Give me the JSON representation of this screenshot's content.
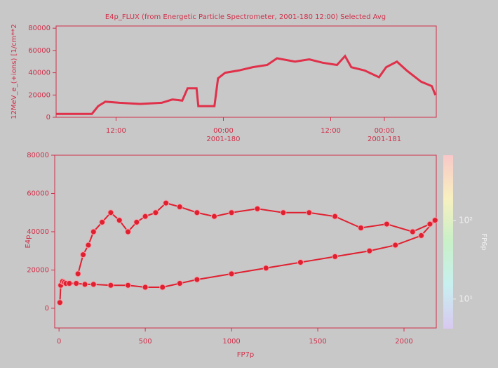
{
  "chart_data": [
    {
      "type": "line",
      "title": "E4p_FLUX (from Energetic Particle Spectrometer, 2001-180 12:00) Selected Avg",
      "ylabel": "12MeV_e_(+ions) [1/cm**2",
      "x": [
        5.3,
        6.9,
        9.3,
        10.0,
        10.8,
        12.4,
        14.7,
        17.1,
        18.3,
        19.4,
        20.0,
        21.0,
        21.2,
        23.0,
        23.4,
        24.2,
        25.7,
        27.3,
        28.9,
        30.0,
        32.0,
        33.6,
        35.1,
        36.7,
        37.6,
        38.3,
        39.8,
        41.4,
        42.2,
        43.4,
        44.5,
        46.1,
        47.3,
        47.7
      ],
      "series": [
        {
          "color": "#e0304a",
          "values": [
            3000,
            3000,
            3000,
            10000,
            14000,
            13000,
            12000,
            13000,
            16000,
            15000,
            26000,
            26000,
            10000,
            10000,
            35000,
            40000,
            42000,
            45000,
            47000,
            53000,
            50000,
            52000,
            49000,
            47000,
            55000,
            45000,
            42000,
            36000,
            45000,
            50000,
            42000,
            32000,
            28000,
            20000
          ]
        }
      ],
      "xlim": [
        5.3,
        47.8
      ],
      "xticks": [
        {
          "value": 12,
          "label": "12:00"
        },
        {
          "value": 24,
          "label": "00:00"
        },
        {
          "value": 36,
          "label": "12:00"
        },
        {
          "value": 42,
          "label": "00:00"
        }
      ],
      "xtick_dates": [
        {
          "value": 24,
          "label": "2001-180"
        },
        {
          "value": 42,
          "label": "2001-181"
        }
      ],
      "ylim": [
        0,
        82000
      ],
      "yticks": [
        0,
        20000,
        40000,
        60000,
        80000
      ]
    },
    {
      "type": "scatter",
      "xlabel": "FP7p",
      "ylabel": "E4p",
      "x": [
        5,
        10,
        20,
        30,
        40,
        60,
        100,
        150,
        200,
        300,
        400,
        500,
        600,
        700,
        800,
        1000,
        1200,
        1400,
        1600,
        1800,
        1950,
        2100,
        2180,
        2150,
        2050,
        1900,
        1750,
        1600,
        1450,
        1300,
        1150,
        1000,
        900,
        800,
        700,
        620,
        560,
        500,
        450,
        400,
        350,
        300,
        250,
        200,
        170,
        140,
        110
      ],
      "series": [
        {
          "color": "#e02030",
          "values": [
            3000,
            12000,
            14000,
            13500,
            13000,
            13000,
            13000,
            12500,
            12500,
            12000,
            12000,
            11000,
            11000,
            13000,
            15000,
            18000,
            21000,
            24000,
            27000,
            30000,
            33000,
            38000,
            46000,
            44000,
            40000,
            44000,
            42000,
            48000,
            50000,
            50000,
            52000,
            50000,
            48000,
            50000,
            53000,
            55000,
            50000,
            48000,
            45000,
            40000,
            46000,
            50000,
            45000,
            40000,
            33000,
            28000,
            18000
          ]
        }
      ],
      "xlim": [
        -25,
        2187
      ],
      "xticks": [
        0,
        500,
        1000,
        1500,
        2000
      ],
      "ylim": [
        -10300,
        80000
      ],
      "yticks": [
        0,
        20000,
        40000,
        60000,
        80000
      ],
      "colorbar": {
        "label": "FP6p",
        "scale": "log",
        "lim": [
          4.2,
          676
        ],
        "ticks": [
          {
            "value": 10,
            "label": "10¹"
          },
          {
            "value": 100,
            "label": "10²"
          }
        ],
        "colormap": [
          "#d8c8f0",
          "#c8f0f0",
          "#c8f0c8",
          "#f8f0c0",
          "#f8c8c8"
        ]
      }
    }
  ]
}
